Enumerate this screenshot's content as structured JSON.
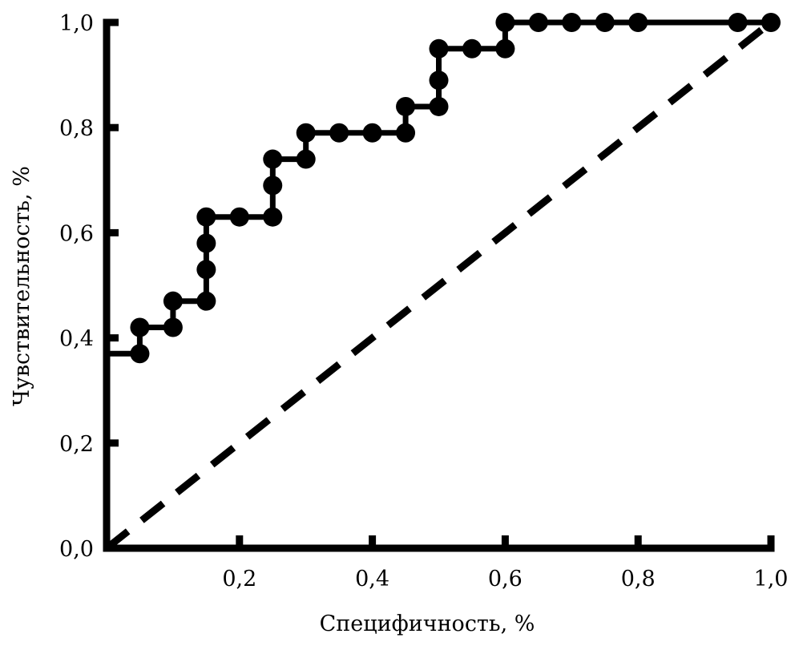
{
  "chart_data": {
    "type": "line",
    "title": "",
    "xlabel": "Специфичность, %",
    "ylabel": "Чувствительность, %",
    "xlim": [
      0,
      1
    ],
    "ylim": [
      0,
      1
    ],
    "grid": false,
    "x_ticks": [
      "0,2",
      "0,4",
      "0,6",
      "0,8",
      "1,0"
    ],
    "y_ticks": [
      "0,0",
      "0,2",
      "0,4",
      "0,6",
      "0,8",
      "1,0"
    ],
    "colors": {
      "series": "#000000",
      "reference": "#000000",
      "axes": "#000000"
    },
    "series": [
      {
        "style": "stepped line with circular markers",
        "x": [
          0.0,
          0.05,
          0.05,
          0.1,
          0.1,
          0.15,
          0.15,
          0.15,
          0.15,
          0.2,
          0.25,
          0.25,
          0.25,
          0.3,
          0.3,
          0.35,
          0.4,
          0.45,
          0.45,
          0.5,
          0.5,
          0.5,
          0.55,
          0.6,
          0.6,
          0.65,
          0.7,
          0.75,
          0.8,
          0.95,
          1.0
        ],
        "y": [
          0.37,
          0.37,
          0.42,
          0.42,
          0.47,
          0.47,
          0.53,
          0.58,
          0.63,
          0.63,
          0.63,
          0.69,
          0.74,
          0.74,
          0.79,
          0.79,
          0.79,
          0.79,
          0.84,
          0.84,
          0.89,
          0.95,
          0.95,
          0.95,
          1.0,
          1.0,
          1.0,
          1.0,
          1.0,
          1.0,
          1.0
        ],
        "markers": [
          false,
          true,
          true,
          true,
          true,
          true,
          true,
          true,
          true,
          true,
          true,
          true,
          true,
          true,
          true,
          true,
          true,
          true,
          true,
          true,
          true,
          true,
          true,
          true,
          true,
          true,
          true,
          true,
          true,
          true,
          true
        ]
      },
      {
        "style": "dashed diagonal reference line",
        "x": [
          0,
          1
        ],
        "y": [
          0,
          1
        ]
      }
    ]
  }
}
